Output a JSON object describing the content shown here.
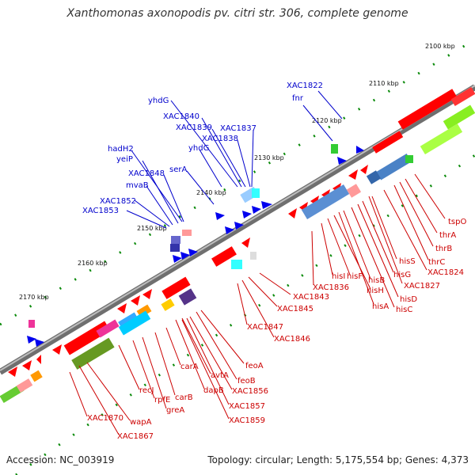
{
  "title": "Xanthomonas axonopodis pv. citri str. 306, complete genome",
  "footer": {
    "accession": "Accession: NC_003919",
    "stats": "Topology: circular; Length: 5,175,554 bp; Genes: 4,373"
  },
  "colors": {
    "forward_label": "#0000cc",
    "reverse_label": "#cc0000",
    "backbone": "#777777",
    "tick": "#0a8a0a"
  },
  "kbp_ticks": [
    "2100 kbp",
    "2110 kbp",
    "2120 kbp",
    "2130 kbp",
    "2140 kbp",
    "2150 kbp",
    "2160 kbp",
    "2170 kbp"
  ],
  "genes_forward_strand": [
    "XAC1822",
    "fnr",
    "yhdG",
    "XAC1840",
    "XAC1839",
    "XAC1837",
    "XAC1838",
    "yhdG",
    "hadH2",
    "yeiP",
    "serA",
    "XAC1848",
    "mvaB",
    "XAC1852",
    "XAC1853"
  ],
  "genes_reverse_strand": [
    "tspO",
    "thrA",
    "thrB",
    "thrC",
    "XAC1824",
    "XAC1827",
    "hisS",
    "hisG",
    "hisD",
    "hisC",
    "hisB",
    "hisA",
    "hisH",
    "hisF",
    "hisI",
    "XAC1836",
    "XAC1843",
    "XAC1845",
    "XAC1847",
    "XAC1846",
    "feoA",
    "feoB",
    "XAC1856",
    "avtA",
    "carA",
    "dapB",
    "XAC1857",
    "XAC1859",
    "carB",
    "recJ",
    "rpfE",
    "greA",
    "wapA",
    "XAC1870",
    "XAC1867"
  ]
}
